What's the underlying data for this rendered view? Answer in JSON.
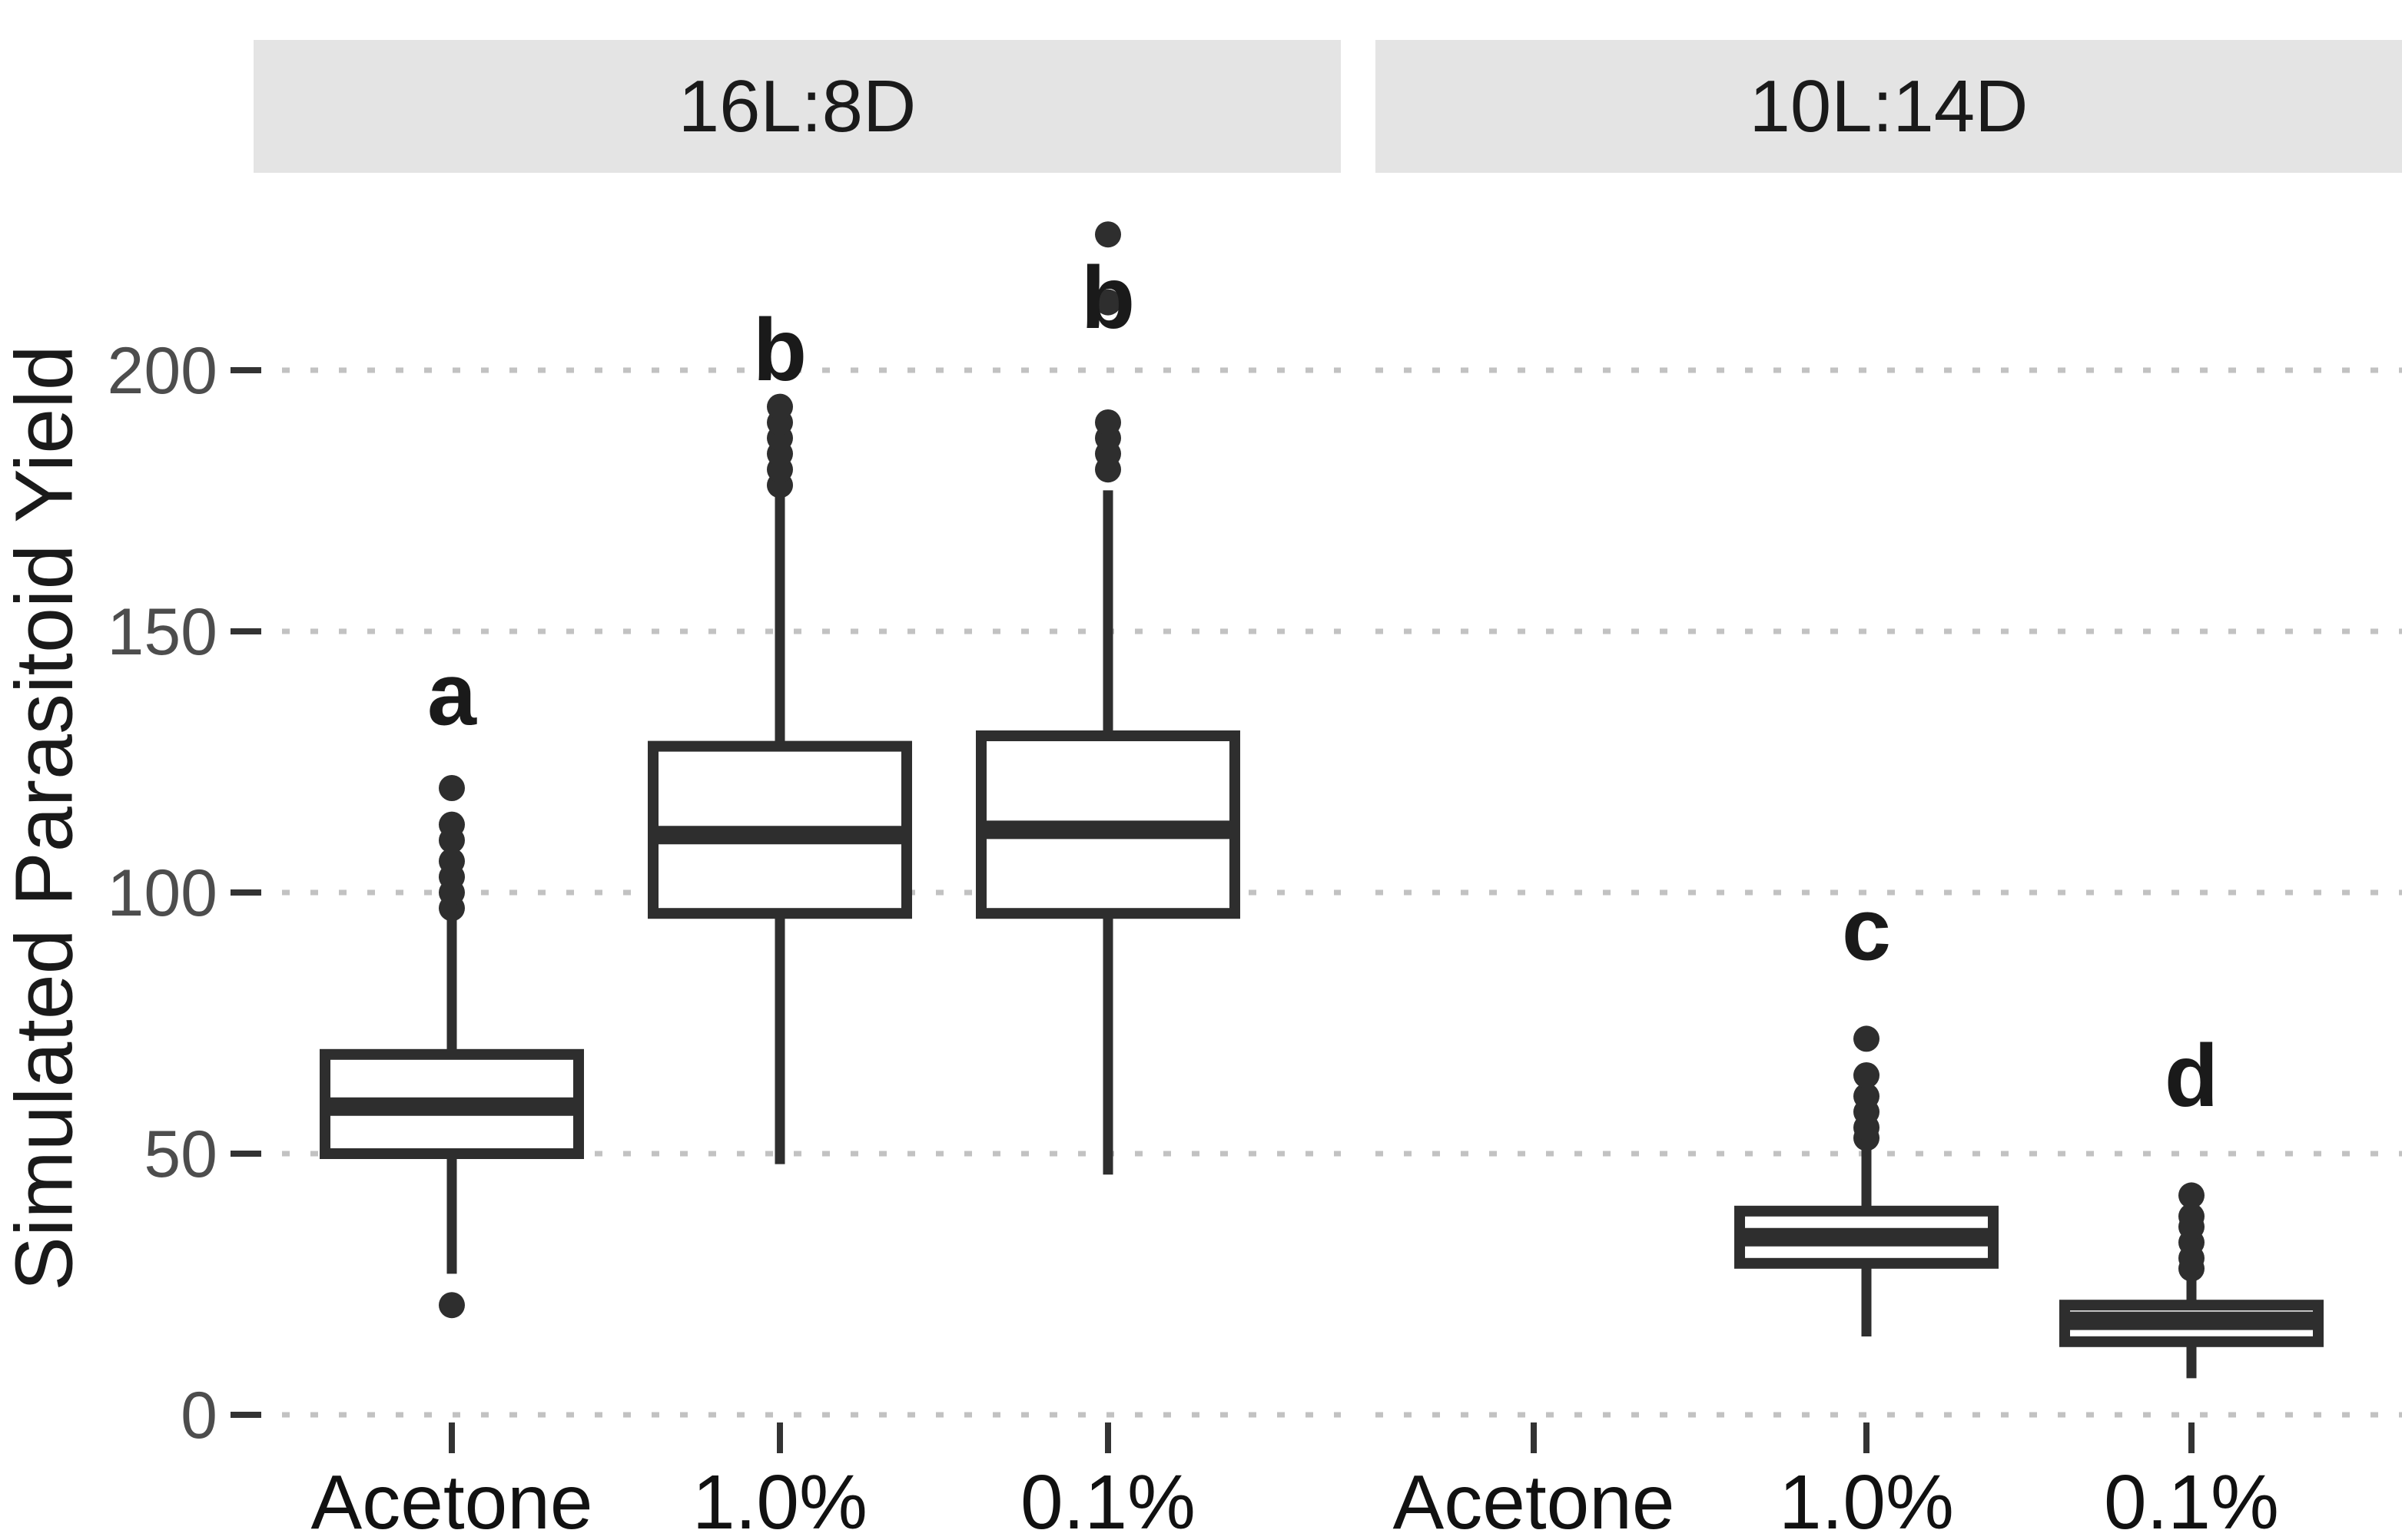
{
  "chart_data": {
    "type": "boxplot",
    "title": "",
    "xlabel": "",
    "ylabel": "Simulated Parasitoid Yield",
    "y_axis": {
      "ticks": [
        0,
        50,
        100,
        150,
        200
      ],
      "range": [
        0,
        236
      ],
      "gridlines": "dotted-horizontal"
    },
    "x_axis_categories": [
      "Acetone",
      "1.0%",
      "0.1%"
    ],
    "legend": null,
    "facets": [
      {
        "label": "16L:8D",
        "groups": [
          {
            "category": "Acetone",
            "letter": "a",
            "letter_value": 138,
            "stats": {
              "whisker_low": 27,
              "q1": 50,
              "median": 59,
              "q3": 69,
              "whisker_high": 95
            },
            "outliers": [
              97,
              100,
              103,
              106,
              110,
              113,
              120,
              21
            ]
          },
          {
            "category": "1.0%",
            "letter": "b",
            "letter_value": 204,
            "stats": {
              "whisker_low": 48,
              "q1": 96,
              "median": 111,
              "q3": 128,
              "whisker_high": 176
            },
            "outliers": [
              178,
              181,
              184,
              187,
              190,
              193
            ]
          },
          {
            "category": "0.1%",
            "letter": "b",
            "letter_value": 214,
            "stats": {
              "whisker_low": 46,
              "q1": 96,
              "median": 112,
              "q3": 130,
              "whisker_high": 177
            },
            "outliers": [
              181,
              184,
              187,
              190,
              213,
              226
            ]
          }
        ]
      },
      {
        "label": "10L:14D",
        "groups": [
          {
            "category": "Acetone",
            "letter": null,
            "letter_value": null,
            "stats": null,
            "outliers": []
          },
          {
            "category": "1.0%",
            "letter": "c",
            "letter_value": 93,
            "stats": {
              "whisker_low": 15,
              "q1": 29,
              "median": 34,
              "q3": 39,
              "whisker_high": 52
            },
            "outliers": [
              53,
              55,
              58,
              61,
              65,
              72
            ]
          },
          {
            "category": "0.1%",
            "letter": "d",
            "letter_value": 65,
            "stats": {
              "whisker_low": 7,
              "q1": 14,
              "median": 18,
              "q3": 21,
              "whisker_high": 26
            },
            "outliers": [
              28,
              30,
              33,
              36,
              38,
              42
            ]
          }
        ]
      }
    ],
    "colors": {
      "box_stroke": "#2e2e2e",
      "box_fill": "#ffffff",
      "outlier": "#2e2e2e",
      "median": "#2e2e2e",
      "gridline": "#c2c2c2",
      "strip_bg": "#e4e4e4",
      "axis_tick_label": "#4d4d4d",
      "x_label": "#111111",
      "text": "#1a1a1a",
      "tick_mark": "#333333"
    }
  }
}
